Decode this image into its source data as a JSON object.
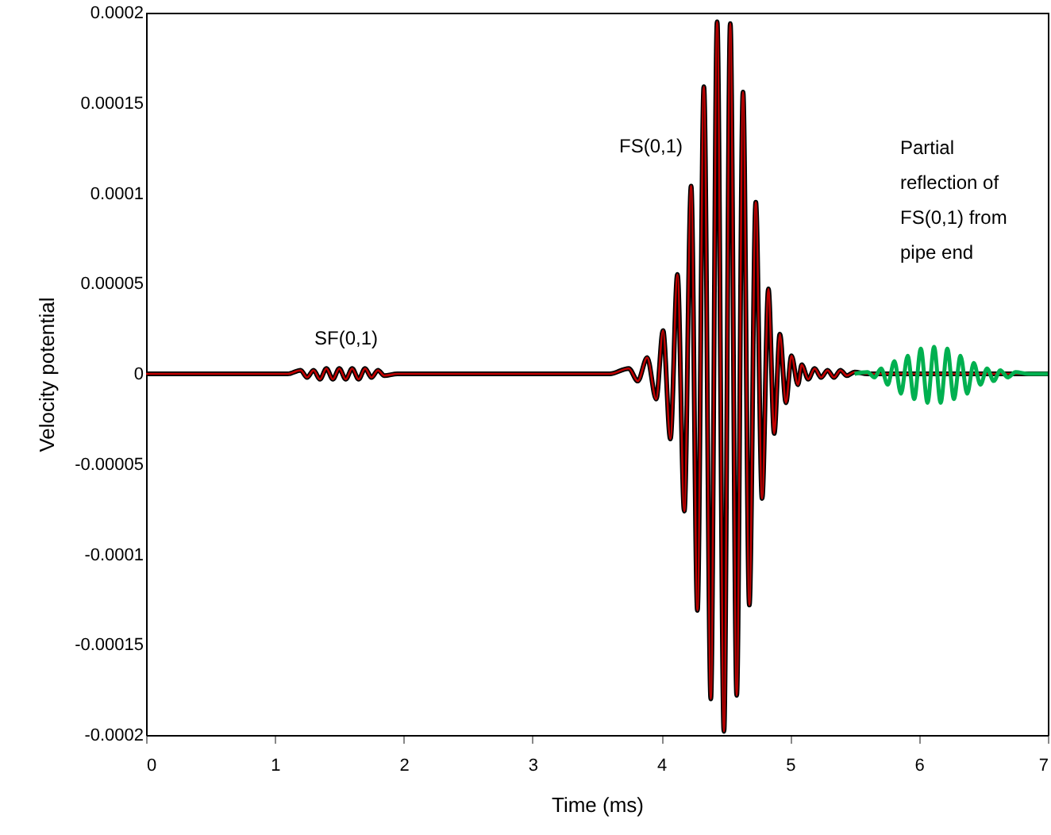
{
  "chart_data": {
    "type": "line",
    "xlabel": "Time (ms)",
    "ylabel": "Velocity potential",
    "xlim": [
      0,
      7
    ],
    "ylim": [
      -0.0002,
      0.0002
    ],
    "xticks": [
      0,
      1,
      2,
      3,
      4,
      5,
      6,
      7
    ],
    "yticks": [
      -0.0002,
      -0.00015,
      -0.0001,
      {
        "value": -5e-05,
        "label": "-0.00005"
      },
      0,
      {
        "value": 5e-05,
        "label": "0.00005"
      },
      0.0001,
      0.00015,
      0.0002
    ],
    "series": [
      {
        "color": "#000000",
        "x": [
          0,
          1.1,
          1.2,
          1.25,
          1.3,
          1.35,
          1.4,
          1.45,
          1.5,
          1.55,
          1.6,
          1.65,
          1.7,
          1.75,
          1.8,
          1.85,
          1.95,
          3.6,
          3.747,
          3.817,
          3.89,
          3.96,
          4.013,
          4.07,
          4.125,
          4.178,
          4.231,
          4.28,
          4.33,
          4.384,
          4.433,
          4.486,
          4.535,
          4.585,
          4.634,
          4.683,
          4.733,
          4.782,
          4.831,
          4.876,
          4.92,
          4.967,
          5.01,
          5.06,
          5.09,
          5.14,
          5.19,
          5.24,
          5.29,
          5.34,
          5.39,
          5.44,
          5.5,
          5.6,
          7
        ],
        "values": [
          0,
          0,
          2e-06,
          -2e-06,
          2e-06,
          -3e-06,
          3e-06,
          -3e-06,
          3e-06,
          -3e-06,
          3e-06,
          -3e-06,
          3e-06,
          -2e-06,
          2e-06,
          -1e-06,
          0,
          0,
          3e-06,
          -4e-06,
          9e-06,
          -1.4e-05,
          2.4e-05,
          -3.6e-05,
          5.5e-05,
          -7.6e-05,
          0.000104,
          -0.000131,
          0.000159,
          -0.00018,
          0.000195,
          -0.000198,
          0.000194,
          -0.000178,
          0.000156,
          -0.000128,
          9.5e-05,
          -6.9e-05,
          4.7e-05,
          -3.3e-05,
          2.2e-05,
          -1.6e-05,
          1e-05,
          -6e-06,
          5e-06,
          -3e-06,
          3e-06,
          -2e-06,
          2e-06,
          -2e-06,
          2e-06,
          -1e-06,
          1e-06,
          0,
          0
        ]
      },
      {
        "color": "#c00000",
        "x": [
          0,
          1.1,
          1.2,
          1.25,
          1.3,
          1.35,
          1.4,
          1.45,
          1.5,
          1.55,
          1.6,
          1.65,
          1.7,
          1.75,
          1.8,
          1.85,
          1.95,
          3.6,
          3.747,
          3.817,
          3.89,
          3.96,
          4.013,
          4.07,
          4.125,
          4.178,
          4.231,
          4.28,
          4.33,
          4.384,
          4.433,
          4.486,
          4.535,
          4.585,
          4.634,
          4.683,
          4.733,
          4.782,
          4.831,
          4.876,
          4.92,
          4.967,
          5.01,
          5.06,
          5.09,
          5.14,
          5.19,
          5.24,
          5.29,
          5.34,
          5.39,
          5.44,
          5.5,
          5.6,
          7
        ],
        "values": [
          0,
          0,
          2e-06,
          -2e-06,
          2e-06,
          -3e-06,
          3e-06,
          -3e-06,
          3e-06,
          -3e-06,
          3e-06,
          -3e-06,
          3e-06,
          -2e-06,
          2e-06,
          -1e-06,
          0,
          0,
          3e-06,
          -4e-06,
          9e-06,
          -1.4e-05,
          2.4e-05,
          -3.6e-05,
          5.5e-05,
          -7.6e-05,
          0.000104,
          -0.000131,
          0.000159,
          -0.00018,
          0.000195,
          -0.000198,
          0.000194,
          -0.000178,
          0.000156,
          -0.000128,
          9.5e-05,
          -6.9e-05,
          4.7e-05,
          -3.3e-05,
          2.2e-05,
          -1.6e-05,
          1e-05,
          -6e-06,
          5e-06,
          -3e-06,
          3e-06,
          -2e-06,
          2e-06,
          -2e-06,
          2e-06,
          -1e-06,
          1e-06,
          0,
          0
        ]
      },
      {
        "color": "#00b050",
        "x": [
          5.5,
          5.6,
          5.654,
          5.706,
          5.757,
          5.809,
          5.86,
          5.912,
          5.963,
          6.014,
          6.066,
          6.117,
          6.168,
          6.22,
          6.271,
          6.322,
          6.374,
          6.425,
          6.477,
          6.528,
          6.58,
          6.631,
          6.69,
          6.75,
          6.85,
          7
        ],
        "values": [
          0,
          1e-06,
          -2e-06,
          3e-06,
          -6e-06,
          7e-06,
          -1.1e-05,
          1e-05,
          -1.4e-05,
          1.4e-05,
          -1.6e-05,
          1.5e-05,
          -1.6e-05,
          1.4e-05,
          -1.4e-05,
          1e-05,
          -1.1e-05,
          6e-06,
          -6e-06,
          3e-06,
          -4e-06,
          2e-06,
          -2e-06,
          1e-06,
          0,
          0
        ]
      }
    ],
    "annotations": [
      "SF(0,1)",
      "FS(0,1)",
      "Partial\nreflection of\nFS(0,1) from\npipe end"
    ]
  }
}
